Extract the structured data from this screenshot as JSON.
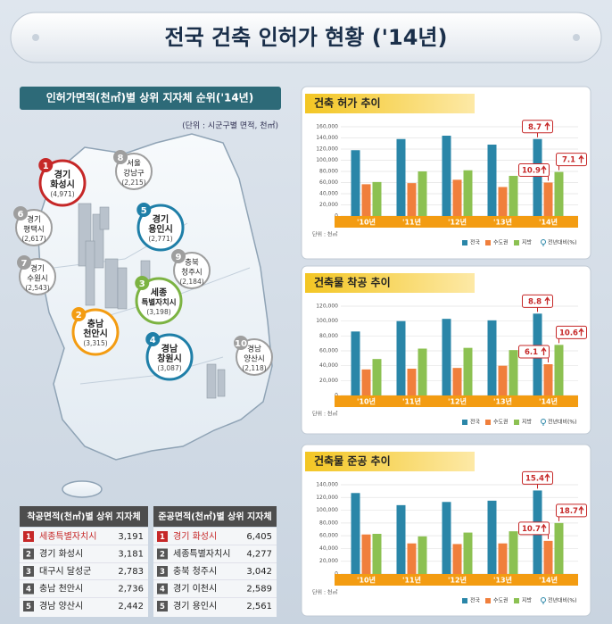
{
  "header": {
    "title": "전국 건축 인허가 현황 ('14년)"
  },
  "map": {
    "title": "인허가면적(천㎡)별 상위 지자체 순위('14년)",
    "unit": "(단위 : 시군구별 면적, 천㎡)",
    "cities": [
      {
        "rank": "1",
        "region": "경기",
        "city": "화성시",
        "area": "(4,971)",
        "color": "#c62828"
      },
      {
        "rank": "2",
        "region": "충남",
        "city": "천안시",
        "area": "(3,315)",
        "color": "#f39c12"
      },
      {
        "rank": "3",
        "region": "세종",
        "city": "특별자치시",
        "area": "(3,198)",
        "color": "#7cb342"
      },
      {
        "rank": "4",
        "region": "경남",
        "city": "창원시",
        "area": "(3,087)",
        "color": "#1f7fa8"
      },
      {
        "rank": "5",
        "region": "경기",
        "city": "용인시",
        "area": "(2,771)",
        "color": "#1f7fa8"
      },
      {
        "rank": "6",
        "region": "경기",
        "city": "평택시",
        "area": "(2,617)",
        "color": "#9e9e9e"
      },
      {
        "rank": "7",
        "region": "경기",
        "city": "수원시",
        "area": "(2,543)",
        "color": "#9e9e9e"
      },
      {
        "rank": "8",
        "region": "서울",
        "city": "강남구",
        "area": "(2,215)",
        "color": "#9e9e9e"
      },
      {
        "rank": "9",
        "region": "충북",
        "city": "청주시",
        "area": "(2,184)",
        "color": "#9e9e9e"
      },
      {
        "rank": "10",
        "region": "경남",
        "city": "양산시",
        "area": "(2,118)",
        "color": "#9e9e9e"
      }
    ]
  },
  "tables": [
    {
      "title": "착공면적(천㎡)별 상위 지자체",
      "rows": [
        [
          "1",
          "세종특별자치시",
          "3,191"
        ],
        [
          "2",
          "경기 화성시",
          "3,181"
        ],
        [
          "3",
          "대구시 달성군",
          "2,783"
        ],
        [
          "4",
          "충남 천안시",
          "2,736"
        ],
        [
          "5",
          "경남 양산시",
          "2,442"
        ]
      ]
    },
    {
      "title": "준공면적(천㎡)별 상위 지자체",
      "rows": [
        [
          "1",
          "경기 화성시",
          "6,405"
        ],
        [
          "2",
          "세종특별자치시",
          "4,277"
        ],
        [
          "3",
          "충북 청주시",
          "3,042"
        ],
        [
          "4",
          "경기 이천시",
          "2,589"
        ],
        [
          "5",
          "경기 용인시",
          "2,561"
        ]
      ]
    }
  ],
  "chart_data": [
    {
      "type": "bar",
      "title": "건축 허가 추이",
      "categories": [
        "'10년",
        "'11년",
        "'12년",
        "'13년",
        "'14년"
      ],
      "series": [
        {
          "name": "전국",
          "color": "#2a86a8",
          "values": [
            118000,
            138000,
            144000,
            128000,
            138000
          ]
        },
        {
          "name": "수도권",
          "color": "#f07f3c",
          "values": [
            57000,
            59000,
            65000,
            52000,
            60000
          ]
        },
        {
          "name": "지방",
          "color": "#8cc152",
          "values": [
            61000,
            80000,
            82000,
            72000,
            79000
          ]
        }
      ],
      "ylim": [
        0,
        160000
      ],
      "yticks": [
        0,
        {
          "value": 20000,
          "label": "20,000"
        },
        {
          "value": 40000,
          "label": "40,000"
        },
        {
          "value": 60000,
          "label": "60,000"
        },
        {
          "value": 80000,
          "label": "80,000"
        },
        {
          "value": 100000,
          "label": "100,000"
        },
        {
          "value": 120000,
          "label": "120,000"
        },
        {
          "value": 140000,
          "label": "140,000"
        },
        {
          "value": 160000,
          "label": "160,000"
        }
      ],
      "unit_note": "단위 : 천㎡",
      "annotations": [
        "8.7",
        "10.9",
        "7.1"
      ],
      "annotation_legend": "전년대비(%)"
    },
    {
      "type": "bar",
      "title": "건축물 착공 추이",
      "categories": [
        "'10년",
        "'11년",
        "'12년",
        "'13년",
        "'14년"
      ],
      "series": [
        {
          "name": "전국",
          "color": "#2a86a8",
          "values": [
            86000,
            100000,
            103000,
            101000,
            110000
          ]
        },
        {
          "name": "수도권",
          "color": "#f07f3c",
          "values": [
            35000,
            36000,
            37000,
            40000,
            42000
          ]
        },
        {
          "name": "지방",
          "color": "#8cc152",
          "values": [
            49000,
            63000,
            64000,
            61000,
            68000
          ]
        }
      ],
      "ylim": [
        0,
        120000
      ],
      "yticks": [
        0,
        {
          "value": 20000,
          "label": "20,000"
        },
        {
          "value": 40000,
          "label": "40,000"
        },
        {
          "value": 60000,
          "label": "60,000"
        },
        {
          "value": 80000,
          "label": "80,000"
        },
        {
          "value": 100000,
          "label": "100,000"
        },
        {
          "value": 120000,
          "label": "120,000"
        }
      ],
      "unit_note": "단위 : 천㎡",
      "annotations": [
        "8.8",
        "6.1",
        "10.6"
      ],
      "annotation_legend": "전년대비(%)"
    },
    {
      "type": "bar",
      "title": "건축물 준공 추이",
      "categories": [
        "'10년",
        "'11년",
        "'12년",
        "'13년",
        "'14년"
      ],
      "series": [
        {
          "name": "전국",
          "color": "#2a86a8",
          "values": [
            127000,
            108000,
            113000,
            115000,
            131000
          ]
        },
        {
          "name": "수도권",
          "color": "#f07f3c",
          "values": [
            62000,
            48000,
            47000,
            48000,
            52000
          ]
        },
        {
          "name": "지방",
          "color": "#8cc152",
          "values": [
            63000,
            59000,
            65000,
            67000,
            80000
          ]
        }
      ],
      "ylim": [
        0,
        140000
      ],
      "yticks": [
        0,
        {
          "value": 20000,
          "label": "20,000"
        },
        {
          "value": 40000,
          "label": "40,000"
        },
        {
          "value": 60000,
          "label": "60,000"
        },
        {
          "value": 80000,
          "label": "80,000"
        },
        {
          "value": 100000,
          "label": "100,000"
        },
        {
          "value": 120000,
          "label": "120,000"
        },
        {
          "value": 140000,
          "label": "140,000"
        }
      ],
      "unit_note": "단위 : 천㎡",
      "annotations": [
        "15.4",
        "10.7",
        "18.7"
      ],
      "annotation_legend": "전년대비(%)"
    }
  ]
}
